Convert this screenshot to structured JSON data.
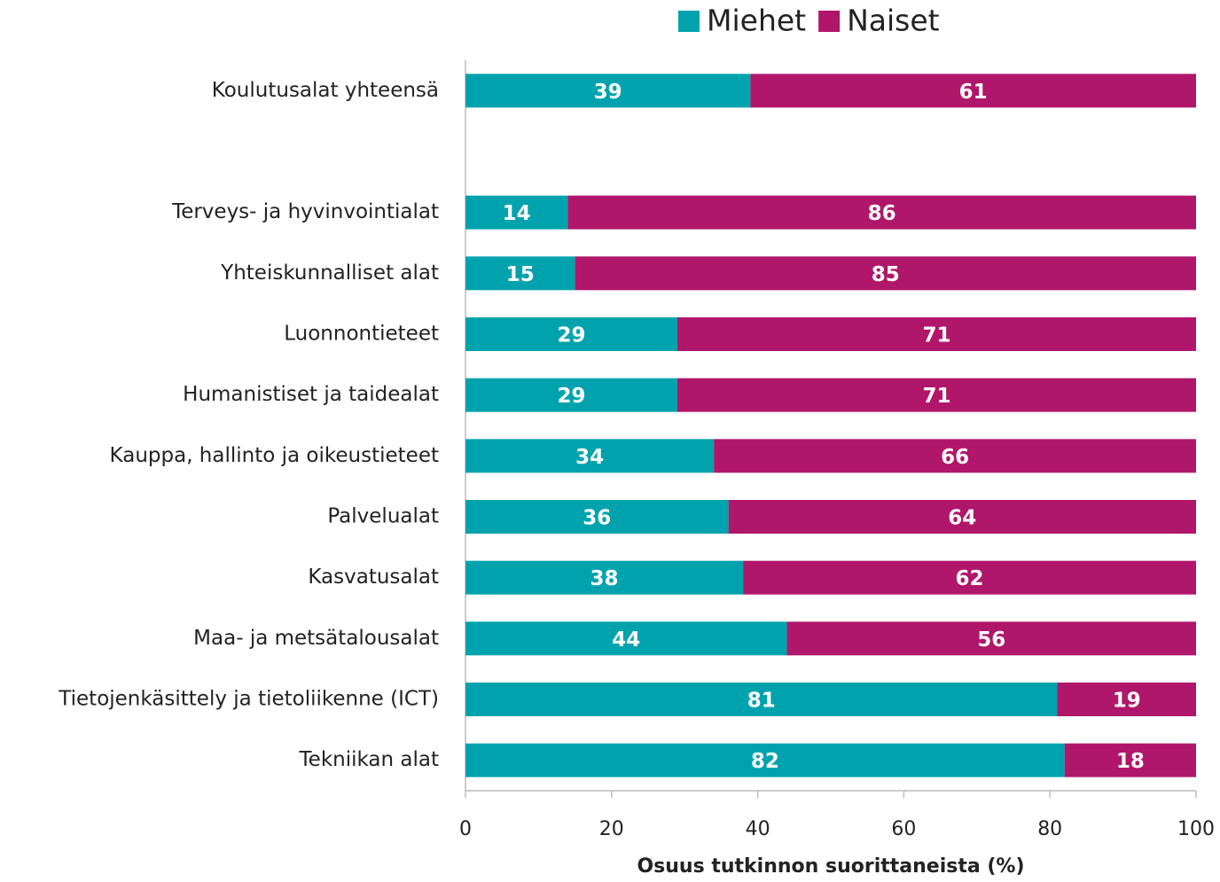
{
  "chart_data": {
    "type": "bar",
    "orientation": "horizontal",
    "stacked": true,
    "x_label": "Osuus tutkinnon suorittaneista (%)",
    "categories": [
      "Koulutusalat yhteensä",
      null,
      "Terveys- ja hyvinvointialat",
      "Yhteiskunnalliset alat",
      "Luonnontieteet",
      "Humanistiset ja taidealat",
      "Kauppa, hallinto ja oikeustieteet",
      "Palvelualat",
      "Kasvatusalat",
      "Maa- ja metsätalousalat",
      "Tietojenkäsittely ja tietoliikenne (ICT)",
      "Tekniikan alat"
    ],
    "series": [
      {
        "name": "Miehet",
        "color": "#00a3ad",
        "values": [
          39,
          null,
          14,
          15,
          29,
          29,
          34,
          36,
          38,
          44,
          81,
          82
        ]
      },
      {
        "name": "Naiset",
        "color": "#b0166a",
        "values": [
          61,
          null,
          86,
          85,
          71,
          71,
          66,
          64,
          62,
          56,
          19,
          18
        ]
      }
    ],
    "xlim": [
      0,
      100
    ],
    "xticks": [
      0,
      20,
      40,
      60,
      80,
      100
    ],
    "legend": "top"
  }
}
